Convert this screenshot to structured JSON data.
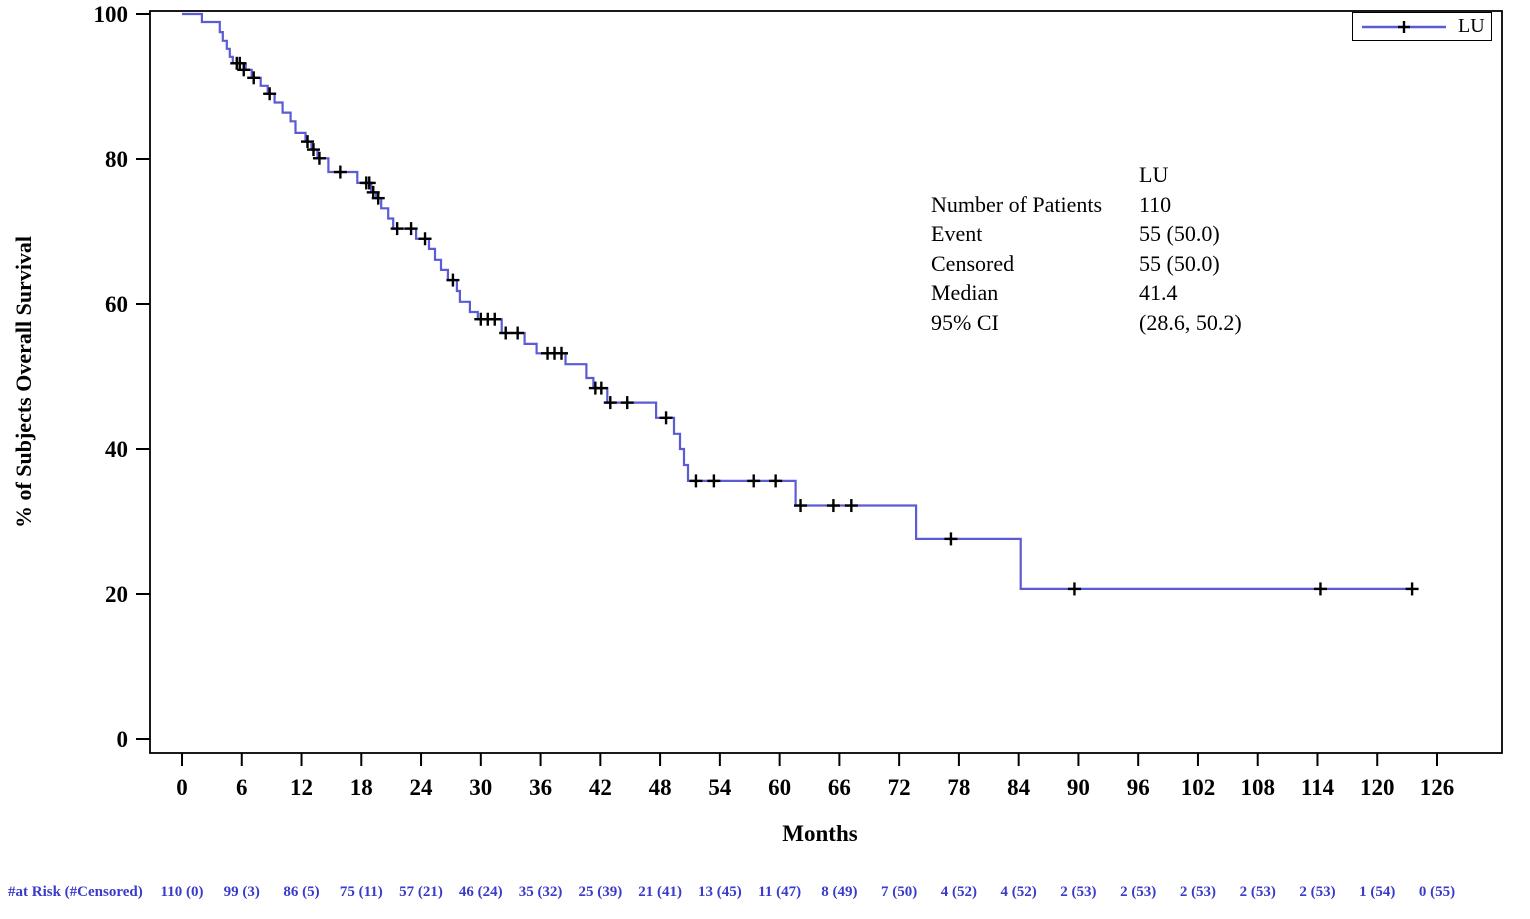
{
  "figure": {
    "y_axis": {
      "title": "% of Subjects Overall Survival",
      "ticks": [
        0,
        20,
        40,
        60,
        80,
        100
      ],
      "range": [
        0,
        100
      ]
    },
    "x_axis": {
      "title": "Months",
      "ticks": [
        0,
        6,
        12,
        18,
        24,
        30,
        36,
        42,
        48,
        54,
        60,
        66,
        72,
        78,
        84,
        90,
        96,
        102,
        108,
        114,
        120,
        126
      ],
      "range": [
        0,
        126
      ]
    },
    "legend": {
      "label": "LU"
    },
    "colors": {
      "curve": "#5b5bd6",
      "censor_mark": "#000000",
      "axis": "#000000",
      "at_risk_text": "#3a3acb"
    }
  },
  "stats_table": {
    "header": "LU",
    "rows": [
      {
        "label": "Number of Patients",
        "value": "110"
      },
      {
        "label": "Event",
        "value": "55 (50.0)"
      },
      {
        "label": "Censored",
        "value": "55 (50.0)"
      },
      {
        "label": "Median",
        "value": "41.4"
      },
      {
        "label": "95% CI",
        "value": "(28.6, 50.2)"
      }
    ]
  },
  "at_risk": {
    "label": "#at Risk (#Censored)",
    "times": [
      0,
      6,
      12,
      18,
      24,
      30,
      36,
      42,
      48,
      54,
      60,
      66,
      72,
      78,
      84,
      90,
      96,
      102,
      108,
      114,
      120,
      126
    ],
    "values": [
      "110 (0)",
      "99 (3)",
      "86 (5)",
      "75 (11)",
      "57 (21)",
      "46 (24)",
      "35 (32)",
      "25 (39)",
      "21 (41)",
      "13 (45)",
      "11 (47)",
      "8 (49)",
      "7 (50)",
      "4 (52)",
      "4 (52)",
      "2 (53)",
      "2 (53)",
      "2 (53)",
      "2 (53)",
      "2 (53)",
      "1 (54)",
      "0 (55)"
    ]
  },
  "chart_data": {
    "type": "line",
    "subtype": "kaplan-meier-step",
    "title": "",
    "xlabel": "Months",
    "ylabel": "% of Subjects Overall Survival",
    "xlim": [
      0,
      126
    ],
    "ylim": [
      0,
      100
    ],
    "grid": false,
    "legend_position": "top-right",
    "series": [
      {
        "name": "LU",
        "steps": [
          [
            0,
            100
          ],
          [
            2,
            98.9
          ],
          [
            3.8,
            97.5
          ],
          [
            4.1,
            96.3
          ],
          [
            4.5,
            95.2
          ],
          [
            4.8,
            94.1
          ],
          [
            5.1,
            93.2
          ],
          [
            6.4,
            92.3
          ],
          [
            7,
            91.2
          ],
          [
            7.9,
            90.1
          ],
          [
            8.6,
            89
          ],
          [
            9.3,
            87.8
          ],
          [
            10.1,
            86.4
          ],
          [
            10.9,
            85.2
          ],
          [
            11.4,
            83.6
          ],
          [
            12.4,
            82.4
          ],
          [
            13,
            81.3
          ],
          [
            13.6,
            80.1
          ],
          [
            14.7,
            78.2
          ],
          [
            17.6,
            76.7
          ],
          [
            19,
            75.4
          ],
          [
            19.5,
            74.6
          ],
          [
            20,
            73.2
          ],
          [
            20.7,
            71.8
          ],
          [
            21.2,
            70.4
          ],
          [
            23.5,
            69
          ],
          [
            24.8,
            67.6
          ],
          [
            25.4,
            66.1
          ],
          [
            26,
            64.7
          ],
          [
            26.7,
            63.3
          ],
          [
            27.6,
            61.8
          ],
          [
            27.9,
            60.3
          ],
          [
            28.9,
            58.9
          ],
          [
            29.7,
            57.9
          ],
          [
            32.1,
            56
          ],
          [
            34.4,
            54.5
          ],
          [
            35.6,
            53.2
          ],
          [
            38.5,
            51.7
          ],
          [
            40.6,
            49.8
          ],
          [
            41.3,
            48.4
          ],
          [
            42.7,
            46.4
          ],
          [
            47.6,
            44.3
          ],
          [
            49.4,
            42.1
          ],
          [
            50,
            40
          ],
          [
            50.4,
            37.8
          ],
          [
            50.8,
            35.6
          ],
          [
            61.6,
            32.2
          ],
          [
            73.7,
            27.6
          ],
          [
            84.2,
            20.7
          ]
        ],
        "censors": [
          [
            5.5,
            93.2
          ],
          [
            5.8,
            93.2
          ],
          [
            6.2,
            92.3
          ],
          [
            7.2,
            91.2
          ],
          [
            8.8,
            89
          ],
          [
            12.6,
            82.4
          ],
          [
            13.2,
            81.3
          ],
          [
            13.8,
            80.1
          ],
          [
            15.9,
            78.2
          ],
          [
            18.5,
            76.7
          ],
          [
            18.8,
            76.7
          ],
          [
            19.2,
            75.4
          ],
          [
            19.7,
            74.6
          ],
          [
            21.6,
            70.4
          ],
          [
            23,
            70.4
          ],
          [
            24.4,
            69
          ],
          [
            27.2,
            63.3
          ],
          [
            30,
            57.9
          ],
          [
            30.7,
            57.9
          ],
          [
            31.4,
            57.9
          ],
          [
            32.5,
            56
          ],
          [
            33.7,
            56
          ],
          [
            36.7,
            53.2
          ],
          [
            37.4,
            53.2
          ],
          [
            38.1,
            53.2
          ],
          [
            41.5,
            48.4
          ],
          [
            42.1,
            48.4
          ],
          [
            43,
            46.4
          ],
          [
            44.7,
            46.4
          ],
          [
            48.6,
            44.3
          ],
          [
            51.6,
            35.6
          ],
          [
            53.4,
            35.6
          ],
          [
            57.4,
            35.6
          ],
          [
            59.6,
            35.6
          ],
          [
            62.1,
            32.2
          ],
          [
            65.4,
            32.2
          ],
          [
            67.2,
            32.2
          ],
          [
            77.2,
            27.6
          ],
          [
            89.6,
            20.7
          ],
          [
            114.3,
            20.7
          ],
          [
            123.5,
            20.7
          ]
        ],
        "end_time": 123.5
      }
    ]
  }
}
